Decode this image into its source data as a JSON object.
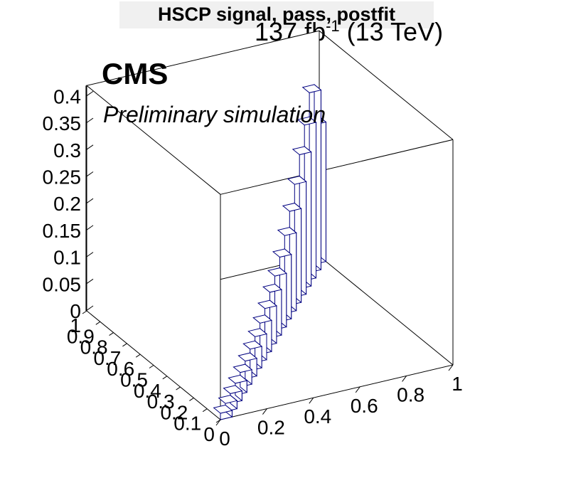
{
  "header": {
    "title": "HSCP signal, pass, postfit",
    "lumi_main": "137 fb",
    "lumi_sup": "-1",
    "lumi_energy": "(13 TeV)",
    "cms_label": "CMS",
    "extra_label": "Preliminary simulation"
  },
  "colors": {
    "bar_edge": "#000080",
    "frame": "#000000",
    "title_bg": "#f0f0f0"
  },
  "chart_data": {
    "type": "bar3d",
    "title": "HSCP signal, pass, postfit",
    "xlabel": "",
    "ylabel": "",
    "zlabel": "",
    "xlim": [
      0,
      1
    ],
    "ylim": [
      0,
      1
    ],
    "zlim": [
      0,
      0.42
    ],
    "x_ticks": [
      "0",
      "0.2",
      "0.4",
      "0.6",
      "0.8",
      "1"
    ],
    "y_ticks": [
      "0",
      "0.1",
      "0.2",
      "0.3",
      "0.4",
      "0.5",
      "0.6",
      "0.7",
      "0.8",
      "0.9",
      "1"
    ],
    "z_ticks": [
      "0",
      "0.05",
      "0.1",
      "0.15",
      "0.2",
      "0.25",
      "0.3",
      "0.35",
      "0.4"
    ],
    "bins": [
      {
        "x0": 0.0,
        "x1": 0.05,
        "y0": 0.0,
        "y1": 0.05,
        "value": 0.012
      },
      {
        "x0": 0.05,
        "x1": 0.1,
        "y0": 0.05,
        "y1": 0.1,
        "value": 0.015
      },
      {
        "x0": 0.1,
        "x1": 0.15,
        "y0": 0.1,
        "y1": 0.15,
        "value": 0.018
      },
      {
        "x0": 0.15,
        "x1": 0.2,
        "y0": 0.15,
        "y1": 0.2,
        "value": 0.022
      },
      {
        "x0": 0.2,
        "x1": 0.25,
        "y0": 0.2,
        "y1": 0.25,
        "value": 0.027
      },
      {
        "x0": 0.25,
        "x1": 0.3,
        "y0": 0.25,
        "y1": 0.3,
        "value": 0.033
      },
      {
        "x0": 0.3,
        "x1": 0.35,
        "y0": 0.3,
        "y1": 0.35,
        "value": 0.04
      },
      {
        "x0": 0.35,
        "x1": 0.4,
        "y0": 0.35,
        "y1": 0.4,
        "value": 0.048
      },
      {
        "x0": 0.4,
        "x1": 0.45,
        "y0": 0.4,
        "y1": 0.45,
        "value": 0.058
      },
      {
        "x0": 0.45,
        "x1": 0.5,
        "y0": 0.45,
        "y1": 0.5,
        "value": 0.07
      },
      {
        "x0": 0.5,
        "x1": 0.55,
        "y0": 0.5,
        "y1": 0.55,
        "value": 0.085
      },
      {
        "x0": 0.55,
        "x1": 0.6,
        "y0": 0.55,
        "y1": 0.6,
        "value": 0.1
      },
      {
        "x0": 0.6,
        "x1": 0.65,
        "y0": 0.6,
        "y1": 0.65,
        "value": 0.12
      },
      {
        "x0": 0.65,
        "x1": 0.7,
        "y0": 0.65,
        "y1": 0.7,
        "value": 0.145
      },
      {
        "x0": 0.7,
        "x1": 0.75,
        "y0": 0.7,
        "y1": 0.75,
        "value": 0.175
      },
      {
        "x0": 0.75,
        "x1": 0.8,
        "y0": 0.75,
        "y1": 0.8,
        "value": 0.21
      },
      {
        "x0": 0.8,
        "x1": 0.85,
        "y0": 0.8,
        "y1": 0.85,
        "value": 0.25
      },
      {
        "x0": 0.85,
        "x1": 0.9,
        "y0": 0.85,
        "y1": 0.9,
        "value": 0.29
      },
      {
        "x0": 0.9,
        "x1": 0.95,
        "y0": 0.9,
        "y1": 0.95,
        "value": 0.335
      },
      {
        "x0": 0.95,
        "x1": 1.0,
        "y0": 0.95,
        "y1": 1.0,
        "value": 0.26
      }
    ],
    "grid": true,
    "legend": "none"
  }
}
